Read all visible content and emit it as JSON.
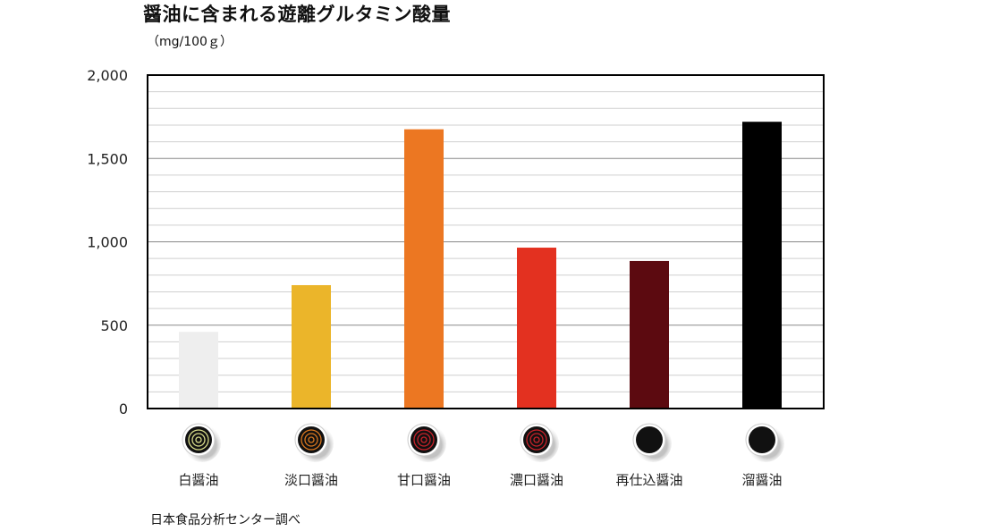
{
  "title": "醤油に含まれる遊離グルタミン酸量",
  "unit_label": "（mg/100ｇ）",
  "source": "日本食品分析センター調べ",
  "chart_data": {
    "type": "bar",
    "title": "醤油に含まれる遊離グルタミン酸量",
    "ylabel": "（mg/100ｇ）",
    "xlabel": "",
    "categories": [
      "白醤油",
      "淡口醤油",
      "甘口醤油",
      "濃口醤油",
      "再仕込醤油",
      "溜醤油"
    ],
    "values": [
      460,
      740,
      1675,
      965,
      885,
      1720
    ],
    "colors": [
      "#eeeeee",
      "#ebb52a",
      "#ec7722",
      "#e33120",
      "#5c0a10",
      "#000000"
    ],
    "ylim": [
      0,
      2000
    ],
    "yticks": [
      0,
      500,
      1000,
      1500,
      2000
    ],
    "ytick_labels": [
      "0",
      "500",
      "1,000",
      "1,500",
      "2,000"
    ],
    "minor_step": 100,
    "grid": true
  }
}
